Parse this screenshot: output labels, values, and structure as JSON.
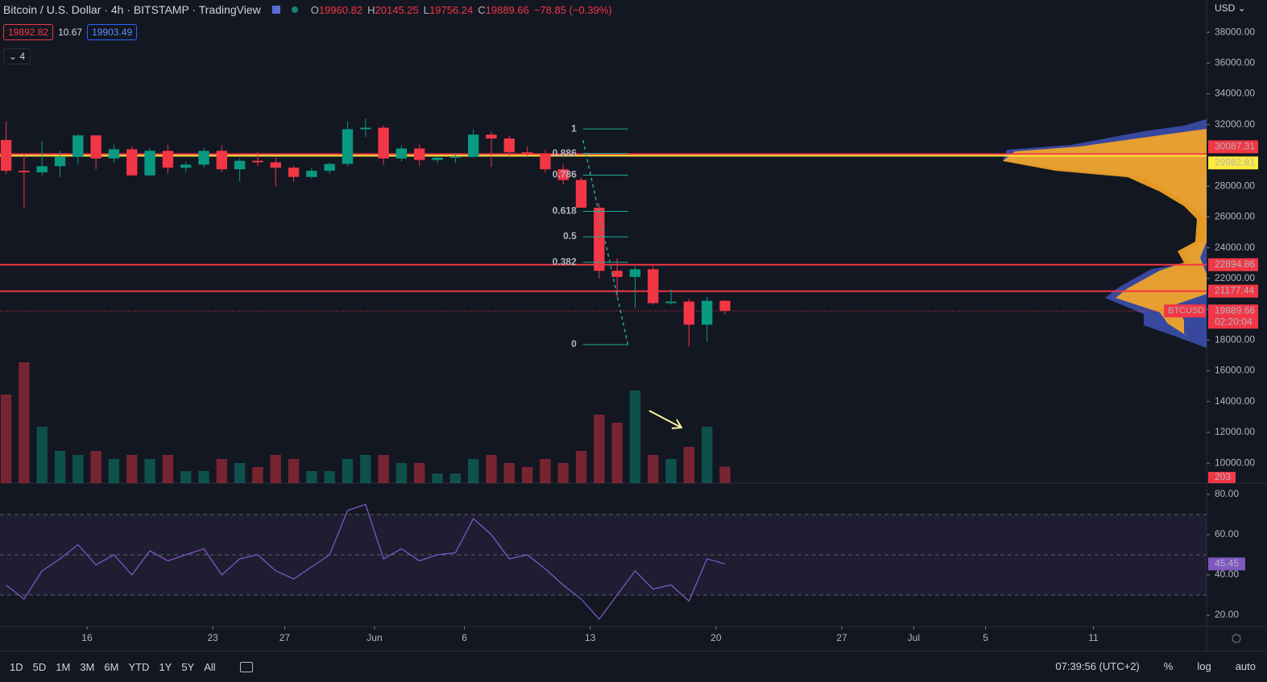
{
  "header": {
    "title": "Bitcoin / U.S. Dollar · 4h · BITSTAMP · TradingView",
    "o": "O",
    "ov": "19960.82",
    "h": "H",
    "hv": "20145.25",
    "l": "L",
    "lv": "19756.24",
    "c": "C",
    "cv": "19889.66",
    "change": "−78.85 (−0.39%)",
    "bid": "19892.82",
    "spread": "10.67",
    "ask": "19903.49",
    "indicators": "4",
    "currency": "USD"
  },
  "toolbar": {
    "ranges": [
      "1D",
      "5D",
      "1M",
      "3M",
      "6M",
      "YTD",
      "1Y",
      "5Y",
      "All"
    ],
    "time": "07:39:56 (UTC+2)",
    "percent": "%",
    "log": "log",
    "auto": "auto"
  },
  "chart_data": {
    "type": "candlestick",
    "x": [
      11,
      12,
      13,
      14,
      15,
      16,
      17,
      18,
      19,
      20,
      21,
      22,
      23,
      24,
      25,
      26,
      27,
      28,
      29,
      30,
      31,
      32,
      33,
      34,
      35,
      36,
      37,
      38,
      39,
      40,
      41,
      42,
      43,
      44,
      45,
      46,
      47,
      48,
      49,
      50,
      51
    ],
    "open": [
      31000,
      29000,
      28900,
      29300,
      29900,
      31300,
      29800,
      30400,
      28700,
      30300,
      29200,
      29400,
      30300,
      29100,
      29650,
      29550,
      29200,
      28600,
      29000,
      29450,
      31700,
      31800,
      29800,
      30450,
      29700,
      29850,
      29900,
      31350,
      31100,
      30200,
      30100,
      29100,
      28400,
      26600,
      22500,
      22100,
      22600,
      20400,
      20500,
      19000,
      20550
    ],
    "high": [
      32200,
      30100,
      30900,
      30300,
      31400,
      31300,
      30700,
      30600,
      30500,
      30700,
      29600,
      30500,
      30650,
      29800,
      30200,
      29850,
      29300,
      29200,
      29500,
      32200,
      32400,
      31950,
      30650,
      30700,
      29950,
      30150,
      31700,
      31550,
      31300,
      30600,
      30350,
      29400,
      28550,
      26900,
      23300,
      22800,
      22900,
      21300,
      20700,
      20800,
      20600
    ],
    "low": [
      28800,
      26600,
      28700,
      28600,
      29400,
      29100,
      29500,
      28700,
      28700,
      28800,
      28900,
      29200,
      28900,
      28300,
      29300,
      28000,
      28300,
      28500,
      28800,
      29300,
      31200,
      29400,
      29600,
      29300,
      29500,
      29500,
      29850,
      29250,
      29900,
      29950,
      28900,
      28100,
      26600,
      22000,
      20800,
      20100,
      20300,
      20300,
      17600,
      17900,
      19650
    ],
    "close": [
      29000,
      28900,
      29300,
      29900,
      31300,
      29800,
      30400,
      28700,
      30300,
      29200,
      29400,
      30300,
      29100,
      29650,
      29550,
      29200,
      28600,
      29000,
      29450,
      31700,
      31800,
      29800,
      30450,
      29700,
      29850,
      29900,
      31350,
      31100,
      30200,
      30100,
      29100,
      28400,
      26600,
      22500,
      22100,
      22600,
      20400,
      20500,
      19000,
      20550,
      19889.66
    ],
    "up_color": "#089981",
    "down_color": "#f23645",
    "xlim": [
      11.16,
      78.3
    ],
    "xticks": [
      16,
      23,
      27,
      {
        "value": 32,
        "label": "Jun"
      },
      {
        "value": 37,
        "label": "6"
      },
      {
        "value": 44,
        "label": "13"
      },
      {
        "value": 51,
        "label": "20"
      },
      {
        "value": 58,
        "label": "27"
      },
      {
        "value": 62,
        "label": "Jul"
      },
      {
        "value": 66,
        "label": "5"
      },
      {
        "value": 72,
        "label": "11"
      }
    ],
    "ylim": [
      8700,
      40100
    ],
    "yticks": [
      {
        "value": 10000,
        "label": "10000.00"
      },
      {
        "value": 12000,
        "label": "12000.00"
      },
      {
        "value": 14000,
        "label": "14000.00"
      },
      {
        "value": 16000,
        "label": "16000.00"
      },
      {
        "value": 18000,
        "label": "18000.00"
      },
      {
        "value": 20000,
        "label": "20000.00"
      },
      {
        "value": 22000,
        "label": "22000.00"
      },
      {
        "value": 24000,
        "label": "24000.00"
      },
      {
        "value": 26000,
        "label": "26000.00"
      },
      {
        "value": 28000,
        "label": "28000.00"
      },
      {
        "value": 32000,
        "label": "32000.00"
      },
      {
        "value": 34000,
        "label": "34000.00"
      },
      {
        "value": 36000,
        "label": "36000.00"
      },
      {
        "value": 38000,
        "label": "38000.00"
      }
    ],
    "lines": [
      {
        "price": 30087.31,
        "color": "#f23645"
      },
      {
        "price": 29982.81,
        "color": "#ffeb3b"
      },
      {
        "price": 22894.86,
        "color": "#f23645"
      },
      {
        "price": 21177.44,
        "color": "#f23645"
      }
    ],
    "last": {
      "name": "BTCUSD",
      "price": 19889.66,
      "countdown": "02:20:04",
      "color": "#f23645"
    },
    "fib": {
      "high": 31720,
      "low": 17700,
      "x_start": 43.6,
      "x_end": 46.1,
      "color": "#22ab94",
      "levels": [
        1,
        0.886,
        0.786,
        0.618,
        0.5,
        0.382,
        0
      ]
    },
    "volume": {
      "ylim": [
        0,
        1600
      ],
      "values": [
        1100,
        1500,
        700,
        400,
        350,
        400,
        300,
        350,
        300,
        350,
        150,
        150,
        300,
        250,
        200,
        350,
        300,
        150,
        150,
        300,
        350,
        350,
        250,
        250,
        120,
        120,
        300,
        350,
        250,
        200,
        300,
        250,
        400,
        850,
        750,
        1150,
        350,
        300,
        450,
        700,
        203
      ]
    },
    "rsi": {
      "color": "#7e57c2",
      "ylim": [
        14.4,
        85.6
      ],
      "bands": [
        30,
        50,
        70
      ],
      "yticks": [
        {
          "value": 20,
          "label": "20.00"
        },
        {
          "value": 40,
          "label": "40.00"
        },
        {
          "value": 60,
          "label": "60.00"
        },
        {
          "value": 80,
          "label": "80.00"
        }
      ],
      "values": [
        35,
        28,
        42,
        48,
        55,
        45,
        50,
        40,
        52,
        47,
        50,
        53,
        40,
        48,
        50,
        42,
        38,
        44,
        50,
        72,
        75,
        48,
        53,
        47,
        50,
        51,
        68,
        60,
        48,
        50,
        43,
        35,
        28,
        18,
        30,
        42,
        33,
        35,
        27,
        48,
        45.45
      ]
    }
  }
}
